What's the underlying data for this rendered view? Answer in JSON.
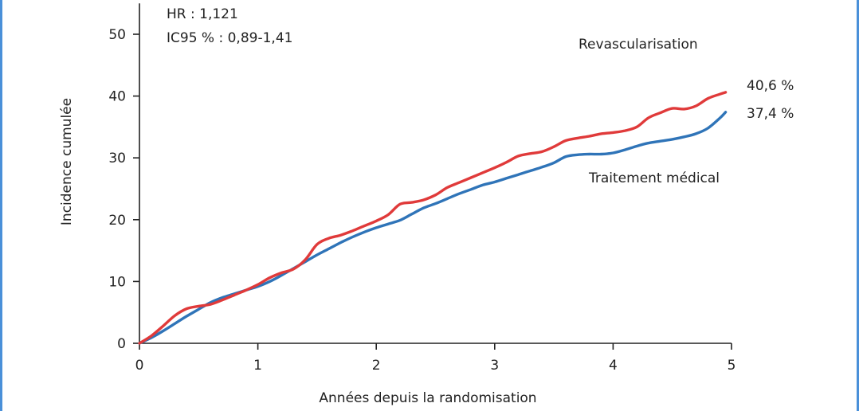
{
  "chart_data": {
    "type": "line",
    "xlabel": "Années depuis la randomisation",
    "ylabel": "Incidence cumulée",
    "xlim": [
      0,
      5
    ],
    "ylim": [
      0,
      55
    ],
    "x_ticks": [
      0,
      1,
      2,
      3,
      4,
      5
    ],
    "y_ticks": [
      0,
      10,
      20,
      30,
      40,
      50
    ],
    "grid": false,
    "stats": {
      "hr": "HR : 1,121",
      "ci": "IC95 % : 0,89-1,41"
    },
    "colors": {
      "revascularisation": "#e03a3a",
      "medical": "#2f74b8"
    },
    "series": [
      {
        "name": "Revascularisation",
        "end_label": "40,6 %",
        "x": [
          0,
          0.1,
          0.2,
          0.3,
          0.4,
          0.5,
          0.6,
          0.7,
          0.8,
          0.9,
          1.0,
          1.1,
          1.2,
          1.3,
          1.4,
          1.5,
          1.6,
          1.7,
          1.8,
          1.9,
          2.0,
          2.1,
          2.2,
          2.3,
          2.4,
          2.5,
          2.6,
          2.7,
          2.8,
          2.9,
          3.0,
          3.1,
          3.2,
          3.3,
          3.4,
          3.5,
          3.6,
          3.7,
          3.8,
          3.9,
          4.0,
          4.1,
          4.2,
          4.3,
          4.4,
          4.5,
          4.6,
          4.7,
          4.8,
          4.9,
          4.95
        ],
        "values": [
          0,
          1.2,
          2.8,
          4.5,
          5.6,
          6.0,
          6.3,
          7.0,
          7.8,
          8.6,
          9.5,
          10.6,
          11.4,
          12.0,
          13.5,
          16.0,
          17.0,
          17.5,
          18.2,
          19.0,
          19.8,
          20.8,
          22.5,
          22.8,
          23.2,
          24.0,
          25.2,
          26.0,
          26.8,
          27.6,
          28.4,
          29.3,
          30.3,
          30.7,
          31.0,
          31.8,
          32.8,
          33.2,
          33.5,
          33.9,
          34.1,
          34.4,
          35.0,
          36.5,
          37.3,
          38.0,
          37.9,
          38.4,
          39.6,
          40.3,
          40.6
        ]
      },
      {
        "name": "Traitement médical",
        "end_label": "37,4 %",
        "x": [
          0,
          0.1,
          0.2,
          0.3,
          0.4,
          0.5,
          0.6,
          0.7,
          0.8,
          0.9,
          1.0,
          1.1,
          1.2,
          1.3,
          1.4,
          1.5,
          1.6,
          1.7,
          1.8,
          1.9,
          2.0,
          2.1,
          2.2,
          2.3,
          2.4,
          2.5,
          2.6,
          2.7,
          2.8,
          2.9,
          3.0,
          3.1,
          3.2,
          3.3,
          3.4,
          3.5,
          3.6,
          3.7,
          3.8,
          3.9,
          4.0,
          4.1,
          4.2,
          4.3,
          4.4,
          4.5,
          4.6,
          4.7,
          4.8,
          4.9,
          4.95
        ],
        "values": [
          0,
          0.9,
          2.0,
          3.2,
          4.4,
          5.5,
          6.6,
          7.4,
          8.0,
          8.6,
          9.2,
          10.0,
          11.0,
          12.1,
          13.2,
          14.3,
          15.3,
          16.3,
          17.2,
          18.0,
          18.7,
          19.3,
          19.9,
          20.9,
          21.9,
          22.6,
          23.4,
          24.2,
          24.9,
          25.6,
          26.1,
          26.7,
          27.3,
          27.9,
          28.5,
          29.2,
          30.2,
          30.5,
          30.6,
          30.6,
          30.8,
          31.3,
          31.9,
          32.4,
          32.7,
          33.0,
          33.4,
          33.9,
          34.8,
          36.4,
          37.4
        ]
      }
    ]
  }
}
